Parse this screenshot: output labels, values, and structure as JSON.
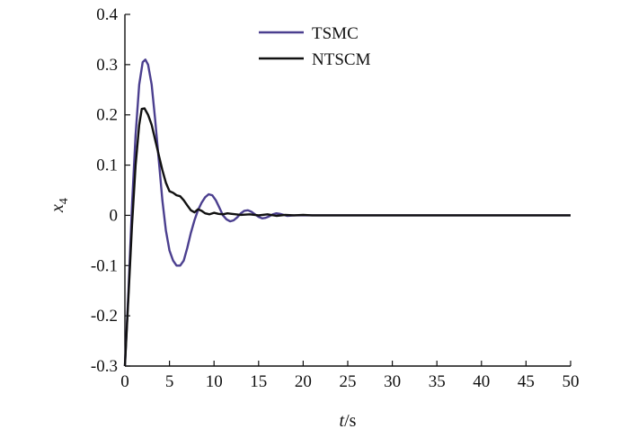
{
  "chart_data": {
    "type": "line",
    "title": "",
    "xlabel_var": "t",
    "xlabel_unit": "/s",
    "ylabel_var": "x",
    "ylabel_sub": "4",
    "xlim": [
      0,
      50
    ],
    "ylim": [
      -0.3,
      0.4
    ],
    "xticks": [
      "0",
      "5",
      "10",
      "15",
      "20",
      "25",
      "30",
      "35",
      "40",
      "45",
      "50"
    ],
    "yticks": [
      "-0.3",
      "-0.2",
      "-0.1",
      "0",
      "0.1",
      "0.2",
      "0.3",
      "0.4"
    ],
    "grid": false,
    "legend_position": "top-center",
    "series": [
      {
        "name": "TSMC",
        "color": "#4b3f8f",
        "x": [
          0,
          0.4,
          0.8,
          1.2,
          1.6,
          2.0,
          2.3,
          2.6,
          3.0,
          3.4,
          3.8,
          4.2,
          4.6,
          5.0,
          5.4,
          5.8,
          6.2,
          6.6,
          7.0,
          7.4,
          7.8,
          8.2,
          8.6,
          9.0,
          9.4,
          9.8,
          10.2,
          10.6,
          11.0,
          11.4,
          11.8,
          12.2,
          12.6,
          13.0,
          13.4,
          13.8,
          14.2,
          14.6,
          15.0,
          15.4,
          15.8,
          16.2,
          16.6,
          17.0,
          17.4,
          17.8,
          18.2,
          19,
          20,
          22,
          25,
          28,
          30,
          33,
          35,
          38,
          40,
          43,
          45,
          48,
          50
        ],
        "y": [
          -0.3,
          -0.15,
          0.02,
          0.16,
          0.26,
          0.305,
          0.31,
          0.3,
          0.26,
          0.19,
          0.11,
          0.03,
          -0.03,
          -0.07,
          -0.09,
          -0.1,
          -0.1,
          -0.09,
          -0.065,
          -0.035,
          -0.01,
          0.01,
          0.025,
          0.036,
          0.042,
          0.04,
          0.03,
          0.015,
          0.0,
          -0.008,
          -0.012,
          -0.01,
          -0.004,
          0.004,
          0.009,
          0.01,
          0.007,
          0.002,
          -0.003,
          -0.006,
          -0.005,
          -0.002,
          0.002,
          0.004,
          0.003,
          0.001,
          -0.001,
          0.0,
          0.0,
          0.0,
          0.0,
          0.0,
          0.0,
          0.0,
          0.0,
          0.0,
          0.0,
          0.0,
          0.0,
          0.0,
          0.0
        ]
      },
      {
        "name": "NTSCM",
        "color": "#111111",
        "x": [
          0,
          0.4,
          0.8,
          1.2,
          1.6,
          1.9,
          2.2,
          2.6,
          3.0,
          3.4,
          3.8,
          4.2,
          4.6,
          5.0,
          5.4,
          5.8,
          6.2,
          6.6,
          7.0,
          7.4,
          7.8,
          8.2,
          8.6,
          9.0,
          9.5,
          10.0,
          10.5,
          11.0,
          11.5,
          12.0,
          13.0,
          14.0,
          15.0,
          16.0,
          17.0,
          18.0,
          19.0,
          20.0,
          21.0,
          22.0,
          25.0,
          28.0,
          30.0,
          33.0,
          35.0,
          38.0,
          40.0,
          43.0,
          45.0,
          48.0,
          50.0
        ],
        "y": [
          -0.3,
          -0.16,
          -0.02,
          0.1,
          0.18,
          0.212,
          0.213,
          0.2,
          0.18,
          0.15,
          0.12,
          0.09,
          0.065,
          0.048,
          0.045,
          0.04,
          0.038,
          0.03,
          0.02,
          0.01,
          0.006,
          0.012,
          0.009,
          0.004,
          0.002,
          0.005,
          0.003,
          0.002,
          0.004,
          0.003,
          0.001,
          0.002,
          0.0,
          0.002,
          -0.001,
          0.001,
          0.0,
          0.001,
          0.0,
          0.0,
          0.0,
          0.0,
          0.0,
          0.0,
          0.0,
          0.0,
          0.0,
          0.0,
          0.0,
          0.0,
          0.0
        ]
      }
    ]
  }
}
